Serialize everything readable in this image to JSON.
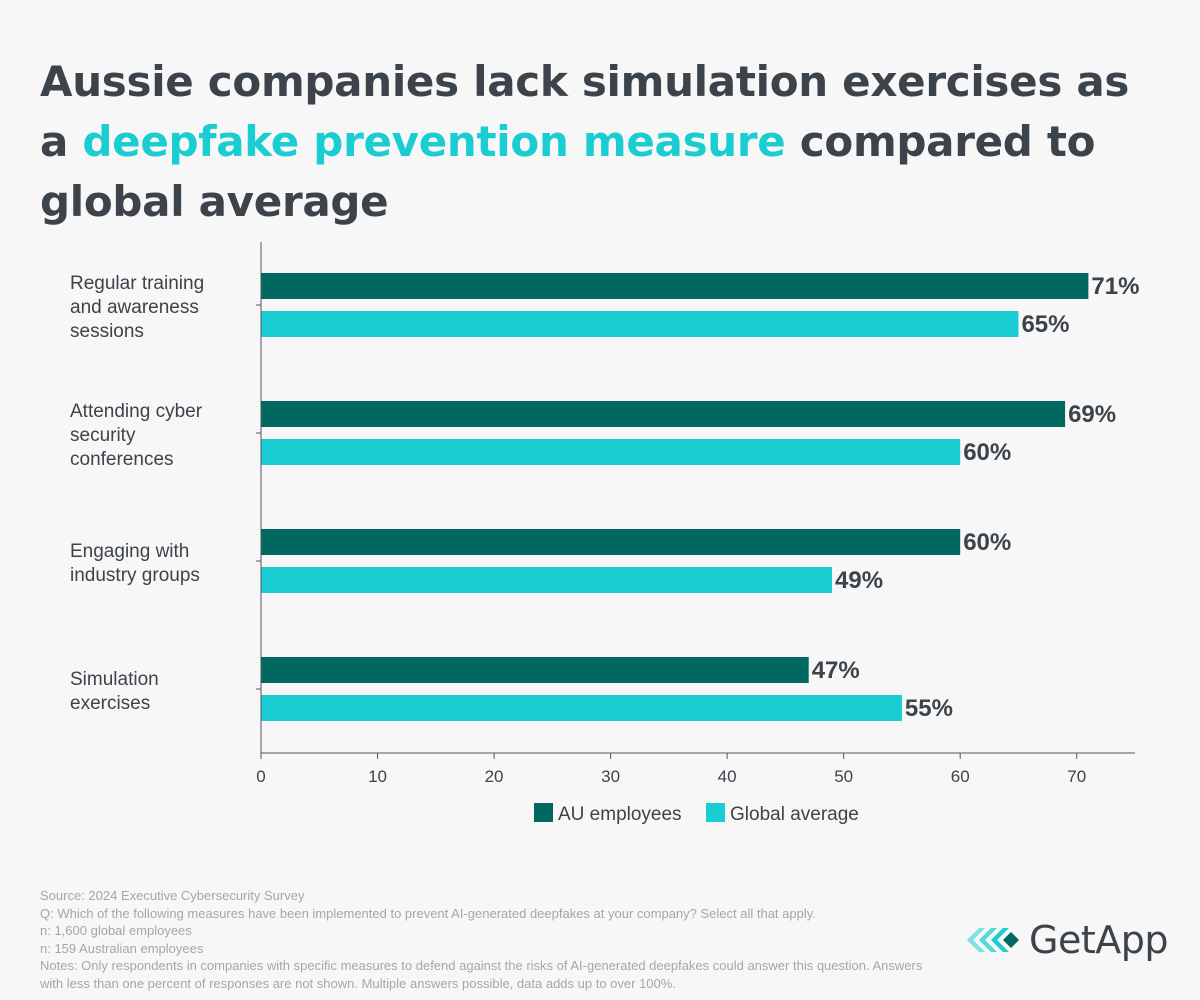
{
  "title": {
    "part1": "Aussie companies lack simulation exercises as a ",
    "highlight": "deepfake prevention measure",
    "part2": " compared to global average",
    "highlight_color": "#19cdd2"
  },
  "colors": {
    "au": "#006861",
    "global": "#19cdd2",
    "text": "#3c434a"
  },
  "chart_data": {
    "type": "bar",
    "orientation": "horizontal",
    "categories": [
      "Regular training and awareness sessions",
      "Attending cyber security conferences",
      "Engaging with industry groups",
      "Simulation exercises"
    ],
    "category_lines": [
      [
        "Regular training",
        "and awareness",
        "sessions"
      ],
      [
        "Attending cyber",
        "security",
        "conferences"
      ],
      [
        "Engaging with",
        "industry groups"
      ],
      [
        "Simulation",
        "exercises"
      ]
    ],
    "series": [
      {
        "name": "AU employees",
        "values": [
          71,
          69,
          60,
          47
        ],
        "labels": [
          "71%",
          "69%",
          "60%",
          "47%"
        ]
      },
      {
        "name": "Global average",
        "values": [
          65,
          60,
          49,
          55
        ],
        "labels": [
          "65%",
          "60%",
          "49%",
          "55%"
        ]
      }
    ],
    "xlim": [
      0,
      75
    ],
    "xticks": [
      0,
      10,
      20,
      30,
      40,
      50,
      60,
      70
    ],
    "xlabel": "",
    "ylabel": "",
    "grid": false,
    "legend": "bottom-center"
  },
  "notes": {
    "source": "Source: 2024 Executive Cybersecurity Survey",
    "question": "Q: Which of the following measures have been implemented to prevent AI-generated deepfakes at your company? Select all that apply.",
    "n_global": "n: 1,600 global employees",
    "n_au": "n: 159 Australian employees",
    "disclaimer": "Notes: Only respondents in companies with specific measures to defend against the risks of AI-generated deepfakes could answer this question. Answers with less than one percent of responses are not shown. Multiple answers possible, data adds up to over 100%."
  },
  "logo": {
    "text": "GetApp"
  }
}
